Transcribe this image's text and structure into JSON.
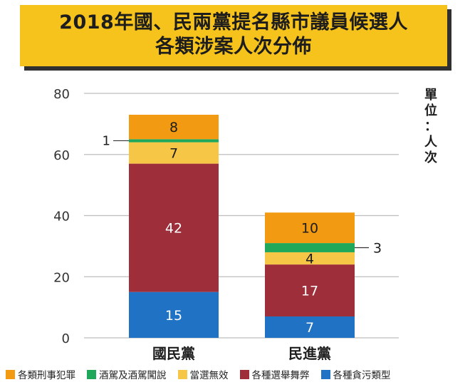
{
  "title": {
    "line1": "2018年國、民兩黨提名縣市議員候選人",
    "line2": "各類涉案人次分佈"
  },
  "chart_data": {
    "type": "bar",
    "stacked": true,
    "categories": [
      "國民黨",
      "民進黨"
    ],
    "series": [
      {
        "name": "各種貪污類型",
        "color": "#1f72c4",
        "values": [
          15,
          7
        ]
      },
      {
        "name": "各種選舉舞弊",
        "color": "#9e2f3a",
        "values": [
          42,
          17
        ]
      },
      {
        "name": "當選無效",
        "color": "#f6c646",
        "values": [
          7,
          4
        ]
      },
      {
        "name": "酒駕及酒駕闖說",
        "color": "#1fa85a",
        "values": [
          1,
          3
        ]
      },
      {
        "name": "各類刑事犯罪",
        "color": "#f29a11",
        "values": [
          8,
          10
        ]
      }
    ],
    "legend_order": [
      4,
      3,
      2,
      1,
      0
    ],
    "ylim": [
      0,
      80
    ],
    "yticks": [
      "0",
      "20",
      "40",
      "60",
      "80"
    ],
    "unit_label": "單位：人次",
    "callouts": [
      {
        "category": 0,
        "series": 3,
        "text": "1",
        "side": "left"
      },
      {
        "category": 1,
        "series": 3,
        "text": "3",
        "side": "right"
      }
    ],
    "legend_placement": "bottom"
  }
}
